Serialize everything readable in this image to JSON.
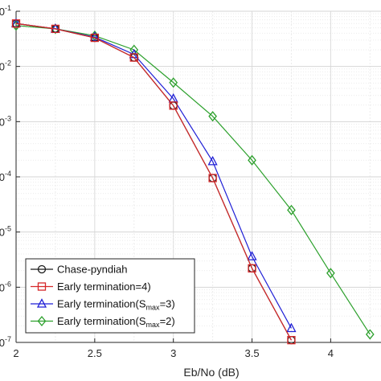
{
  "chart_data": {
    "type": "line",
    "title": "",
    "xlabel": "Eb/No (dB)",
    "ylabel": "",
    "xlim": [
      2,
      4.32
    ],
    "ylim_log10": [
      -7,
      -1
    ],
    "yscale": "log",
    "grid": true,
    "legend_position": "bottom-left",
    "x_ticks": [
      "2",
      "2.5",
      "3",
      "3.5",
      "4"
    ],
    "x_tick_values": [
      2,
      2.5,
      3,
      3.5,
      4
    ],
    "y_ticks": [
      {
        "exp": -1,
        "prefix": "0",
        "sup": "-1"
      },
      {
        "exp": -2,
        "prefix": "0",
        "sup": "-2"
      },
      {
        "exp": -3,
        "prefix": "0",
        "sup": "-3"
      },
      {
        "exp": -4,
        "prefix": "0",
        "sup": "-4"
      },
      {
        "exp": -5,
        "prefix": "0",
        "sup": "-5"
      },
      {
        "exp": -6,
        "prefix": "0",
        "sup": "-6"
      },
      {
        "exp": -7,
        "prefix": "0",
        "sup": "-7"
      }
    ],
    "series": [
      {
        "legend": {
          "text": "Chase-pyndiah",
          "sub": "",
          "after": ""
        },
        "color": "#1a1a1a",
        "marker": "circle",
        "x": [
          2,
          2.25,
          2.5,
          2.75,
          3,
          3.25,
          3.5,
          3.75
        ],
        "y": [
          0.06,
          0.048,
          0.033,
          0.0145,
          0.00195,
          9.5e-05,
          2.2e-06,
          1.1e-07
        ]
      },
      {
        "legend": {
          "text": "Early termination",
          "sub": "",
          "after": "=4)"
        },
        "color": "#d62728",
        "marker": "square",
        "x": [
          2,
          2.25,
          2.5,
          2.75,
          3,
          3.25,
          3.5,
          3.75
        ],
        "y": [
          0.06,
          0.048,
          0.033,
          0.0145,
          0.00195,
          9.5e-05,
          2.2e-06,
          1.1e-07
        ]
      },
      {
        "legend": {
          "text": "Early termination(S",
          "sub": "max",
          "after": "=3)"
        },
        "color": "#1f1fd6",
        "marker": "triangle",
        "x": [
          2,
          2.25,
          2.5,
          2.75,
          3,
          3.25,
          3.5,
          3.75
        ],
        "y": [
          0.06,
          0.048,
          0.034,
          0.0165,
          0.0026,
          0.00019,
          3.6e-06,
          1.8e-07
        ]
      },
      {
        "legend": {
          "text": "Early termination(S",
          "sub": "max",
          "after": "=2)"
        },
        "color": "#2ca02c",
        "marker": "diamond",
        "x": [
          2,
          2.25,
          2.5,
          2.75,
          3,
          3.25,
          3.5,
          3.75,
          4,
          4.25
        ],
        "y": [
          0.055,
          0.048,
          0.036,
          0.02,
          0.0051,
          0.00125,
          0.0002,
          2.5e-05,
          1.8e-06,
          1.4e-07
        ]
      }
    ]
  }
}
